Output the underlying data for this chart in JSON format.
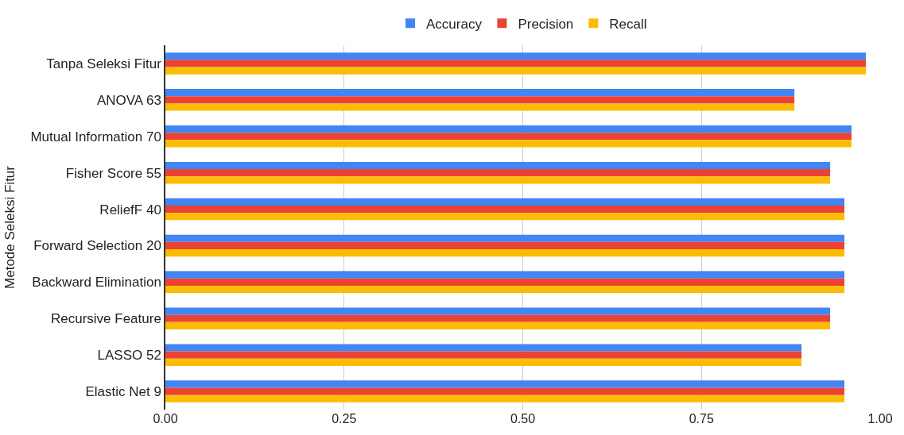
{
  "chart_data": {
    "type": "bar",
    "orientation": "horizontal",
    "ylabel": "Metode Seleksi Fitur",
    "categories": [
      "Tanpa Seleksi Fitur",
      "ANOVA 63",
      "Mutual Information 70",
      "Fisher Score 55",
      "ReliefF 40",
      "Forward Selection 20",
      "Backward Elimination",
      "Recursive Feature",
      "LASSO 52",
      "Elastic Net 9"
    ],
    "series": [
      {
        "name": "Accuracy",
        "color": "#4285f4",
        "values": [
          0.98,
          0.88,
          0.96,
          0.93,
          0.95,
          0.95,
          0.95,
          0.93,
          0.89,
          0.95
        ]
      },
      {
        "name": "Precision",
        "color": "#ea4335",
        "values": [
          0.98,
          0.88,
          0.96,
          0.93,
          0.95,
          0.95,
          0.95,
          0.93,
          0.89,
          0.95
        ]
      },
      {
        "name": "Recall",
        "color": "#fbbc04",
        "values": [
          0.98,
          0.88,
          0.96,
          0.93,
          0.95,
          0.95,
          0.95,
          0.93,
          0.89,
          0.95
        ]
      }
    ],
    "xlim": [
      0,
      1.0
    ],
    "xticks": [
      {
        "value": 0,
        "label": "0.00"
      },
      {
        "value": 0.25,
        "label": "0.25"
      },
      {
        "value": 0.5,
        "label": "0.50"
      },
      {
        "value": 0.75,
        "label": "0.75"
      },
      {
        "value": 1.0,
        "label": "1.00"
      }
    ],
    "grid": "x",
    "legend": "top"
  }
}
